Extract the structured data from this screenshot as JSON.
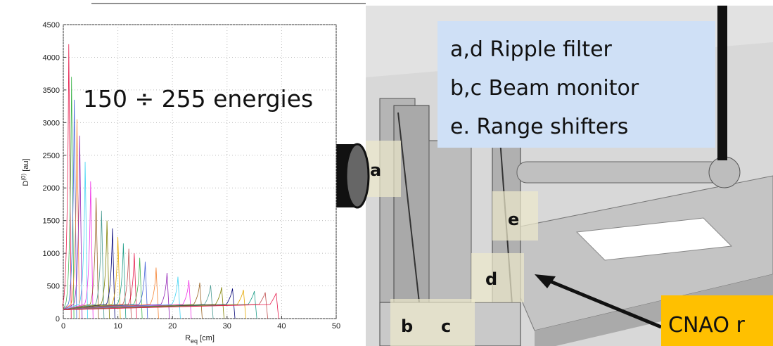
{
  "chart_data": {
    "type": "peaks",
    "ylabel": {
      "base": "D",
      "sup": "(0)",
      "unit": " [au]"
    },
    "xlabel": {
      "base": "R",
      "sub": "eq",
      "unit": " [cm]"
    },
    "xlim": [
      0,
      50
    ],
    "ylim": [
      0,
      4500
    ],
    "xticks": [
      0,
      10,
      20,
      30,
      40,
      50
    ],
    "yticks": [
      0,
      500,
      1000,
      1500,
      2000,
      2500,
      3000,
      3500,
      4000,
      4500
    ],
    "x": [
      1,
      1.5,
      2,
      2.5,
      3,
      4,
      5,
      6,
      7,
      8,
      9,
      10,
      11,
      12,
      13,
      14,
      15,
      17,
      19,
      21,
      23,
      25,
      27,
      29,
      31,
      33,
      35,
      37,
      39
    ],
    "values": [
      4200,
      3700,
      3350,
      3050,
      2800,
      2400,
      2100,
      1850,
      1650,
      1500,
      1380,
      1250,
      1150,
      1070,
      1000,
      930,
      870,
      780,
      700,
      640,
      590,
      550,
      510,
      480,
      460,
      440,
      420,
      400,
      390
    ],
    "colors": [
      "#e6194b",
      "#3cb44b",
      "#4363d8",
      "#f58231",
      "#911eb4",
      "#42d4f4",
      "#f032e6",
      "#9a6324",
      "#469990",
      "#808000",
      "#000075",
      "#e6a800",
      "#1f9e89",
      "#c05050"
    ]
  },
  "annotation": "150 ÷ 255 energies",
  "legend_box": [
    "a,d Ripple filter",
    "b,c Beam monitor",
    "e. Range shifters"
  ],
  "labels": {
    "a": "a",
    "b": "b",
    "c": "c",
    "d": "d",
    "e": "e"
  },
  "banner": "CNAO r"
}
